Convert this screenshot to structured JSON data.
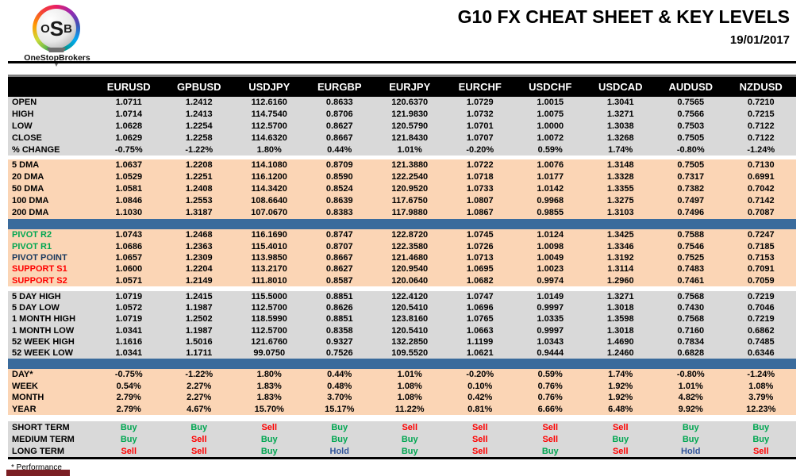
{
  "header": {
    "logo_o": "O",
    "logo_s": "S",
    "logo_b": "B",
    "logo_label": "OneStopBrokers",
    "title": "G10 FX CHEAT SHEET & KEY LEVELS",
    "date": "19/01/2017"
  },
  "footer": {
    "note": "* Performance"
  },
  "colors": {
    "buy": "#00A651",
    "sell": "#FE0000",
    "hold": "#31559B",
    "pivot_resistance": "#00A651",
    "pivot_point": "#17375D",
    "support": "#FE0000",
    "section_peach": "#FBD5B5",
    "section_gray": "#D9D9D9",
    "divider_blue": "#3A6B9C",
    "header_bg": "#000000"
  },
  "table": {
    "columns": [
      "EURUSD",
      "GPBUSD",
      "USDJPY",
      "EURGBP",
      "EURJPY",
      "EURCHF",
      "USDCHF",
      "USDCAD",
      "AUDUSD",
      "NZDUSD"
    ],
    "sections": [
      {
        "id": "ohlc",
        "bg": "gray",
        "before": null,
        "rows": [
          {
            "label": "OPEN",
            "values": [
              "1.0711",
              "1.2412",
              "112.6160",
              "0.8633",
              "120.6370",
              "1.0729",
              "1.0015",
              "1.3041",
              "0.7565",
              "0.7210"
            ]
          },
          {
            "label": "HIGH",
            "values": [
              "1.0714",
              "1.2413",
              "114.7540",
              "0.8706",
              "121.9830",
              "1.0732",
              "1.0075",
              "1.3271",
              "0.7566",
              "0.7215"
            ]
          },
          {
            "label": "LOW",
            "values": [
              "1.0628",
              "1.2254",
              "112.5700",
              "0.8627",
              "120.5790",
              "1.0701",
              "1.0000",
              "1.3038",
              "0.7503",
              "0.7122"
            ]
          },
          {
            "label": "CLOSE",
            "values": [
              "1.0629",
              "1.2258",
              "114.6320",
              "0.8667",
              "121.8430",
              "1.0707",
              "1.0072",
              "1.3268",
              "0.7505",
              "0.7122"
            ]
          },
          {
            "label": "% CHANGE",
            "values": [
              "-0.75%",
              "-1.22%",
              "1.80%",
              "0.44%",
              "1.01%",
              "-0.20%",
              "0.59%",
              "1.74%",
              "-0.80%",
              "-1.24%"
            ]
          }
        ]
      },
      {
        "id": "dma",
        "bg": "peach",
        "before": "gap",
        "rows": [
          {
            "label": "5 DMA",
            "values": [
              "1.0637",
              "1.2208",
              "114.1080",
              "0.8709",
              "121.3880",
              "1.0722",
              "1.0076",
              "1.3148",
              "0.7505",
              "0.7130"
            ]
          },
          {
            "label": "20 DMA",
            "values": [
              "1.0529",
              "1.2251",
              "116.1200",
              "0.8590",
              "122.2540",
              "1.0718",
              "1.0177",
              "1.3328",
              "0.7317",
              "0.6991"
            ]
          },
          {
            "label": "50 DMA",
            "values": [
              "1.0581",
              "1.2408",
              "114.3420",
              "0.8524",
              "120.9520",
              "1.0733",
              "1.0142",
              "1.3355",
              "0.7382",
              "0.7042"
            ]
          },
          {
            "label": "100 DMA",
            "values": [
              "1.0846",
              "1.2553",
              "108.6640",
              "0.8639",
              "117.6750",
              "1.0807",
              "0.9968",
              "1.3275",
              "0.7497",
              "0.7142"
            ]
          },
          {
            "label": "200 DMA",
            "values": [
              "1.1030",
              "1.3187",
              "107.0670",
              "0.8383",
              "117.9880",
              "1.0867",
              "0.9855",
              "1.3103",
              "0.7496",
              "0.7087"
            ]
          }
        ]
      },
      {
        "id": "pivots",
        "bg": "peach",
        "before": "blue",
        "rows": [
          {
            "label": "PIVOT R2",
            "cls": "lbl-green",
            "values": [
              "1.0743",
              "1.2468",
              "116.1690",
              "0.8747",
              "122.8720",
              "1.0745",
              "1.0124",
              "1.3425",
              "0.7588",
              "0.7247"
            ]
          },
          {
            "label": "PIVOT R1",
            "cls": "lbl-green",
            "values": [
              "1.0686",
              "1.2363",
              "115.4010",
              "0.8707",
              "122.3580",
              "1.0726",
              "1.0098",
              "1.3346",
              "0.7546",
              "0.7185"
            ]
          },
          {
            "label": "PIVOT POINT",
            "cls": "lbl-navy",
            "values": [
              "1.0657",
              "1.2309",
              "113.9850",
              "0.8667",
              "121.4680",
              "1.0713",
              "1.0049",
              "1.3192",
              "0.7525",
              "0.7153"
            ]
          },
          {
            "label": "SUPPORT S1",
            "cls": "lbl-red",
            "values": [
              "1.0600",
              "1.2204",
              "113.2170",
              "0.8627",
              "120.9540",
              "1.0695",
              "1.0023",
              "1.3114",
              "0.7483",
              "0.7091"
            ]
          },
          {
            "label": "SUPPORT S2",
            "cls": "lbl-red",
            "values": [
              "1.0571",
              "1.2149",
              "111.8010",
              "0.8587",
              "120.0640",
              "1.0682",
              "0.9974",
              "1.2960",
              "0.7461",
              "0.7059"
            ]
          }
        ]
      },
      {
        "id": "ranges",
        "bg": "gray",
        "before": "gap",
        "rows": [
          {
            "label": "5 DAY HIGH",
            "values": [
              "1.0719",
              "1.2415",
              "115.5000",
              "0.8851",
              "122.4120",
              "1.0747",
              "1.0149",
              "1.3271",
              "0.7568",
              "0.7219"
            ]
          },
          {
            "label": "5 DAY LOW",
            "values": [
              "1.0572",
              "1.1987",
              "112.5700",
              "0.8626",
              "120.5410",
              "1.0696",
              "0.9997",
              "1.3018",
              "0.7430",
              "0.7046"
            ]
          },
          {
            "label": "1 MONTH HIGH",
            "values": [
              "1.0719",
              "1.2502",
              "118.5990",
              "0.8851",
              "123.8160",
              "1.0765",
              "1.0335",
              "1.3598",
              "0.7568",
              "0.7219"
            ]
          },
          {
            "label": "1 MONTH LOW",
            "values": [
              "1.0341",
              "1.1987",
              "112.5700",
              "0.8358",
              "120.5410",
              "1.0663",
              "0.9997",
              "1.3018",
              "0.7160",
              "0.6862"
            ]
          },
          {
            "label": "52 WEEK HIGH",
            "values": [
              "1.1616",
              "1.5016",
              "121.6760",
              "0.9327",
              "132.2850",
              "1.1199",
              "1.0343",
              "1.4690",
              "0.7834",
              "0.7485"
            ]
          },
          {
            "label": "52 WEEK LOW",
            "values": [
              "1.0341",
              "1.1711",
              "99.0750",
              "0.7526",
              "109.5520",
              "1.0621",
              "0.9444",
              "1.2460",
              "0.6828",
              "0.6346"
            ]
          }
        ]
      },
      {
        "id": "perf",
        "bg": "peach",
        "before": "blue",
        "rows": [
          {
            "label": "DAY*",
            "values": [
              "-0.75%",
              "-1.22%",
              "1.80%",
              "0.44%",
              "1.01%",
              "-0.20%",
              "0.59%",
              "1.74%",
              "-0.80%",
              "-1.24%"
            ]
          },
          {
            "label": "WEEK",
            "values": [
              "0.54%",
              "2.27%",
              "1.83%",
              "0.48%",
              "1.08%",
              "0.10%",
              "0.76%",
              "1.92%",
              "1.01%",
              "1.08%"
            ]
          },
          {
            "label": "MONTH",
            "values": [
              "2.79%",
              "2.27%",
              "1.83%",
              "3.70%",
              "1.08%",
              "0.42%",
              "0.76%",
              "1.92%",
              "4.82%",
              "3.79%"
            ]
          },
          {
            "label": "YEAR",
            "values": [
              "2.79%",
              "4.67%",
              "15.70%",
              "15.17%",
              "11.22%",
              "0.81%",
              "6.66%",
              "6.48%",
              "9.92%",
              "12.23%"
            ]
          }
        ]
      },
      {
        "id": "signals",
        "bg": "gray",
        "before": "gap",
        "signals": true,
        "rows": [
          {
            "label": "SHORT TERM",
            "values": [
              "Buy",
              "Buy",
              "Sell",
              "Buy",
              "Sell",
              "Sell",
              "Sell",
              "Sell",
              "Buy",
              "Buy"
            ]
          },
          {
            "label": "MEDIUM TERM",
            "values": [
              "Buy",
              "Sell",
              "Buy",
              "Buy",
              "Buy",
              "Sell",
              "Sell",
              "Buy",
              "Buy",
              "Buy"
            ]
          },
          {
            "label": "LONG TERM",
            "values": [
              "Sell",
              "Sell",
              "Buy",
              "Hold",
              "Buy",
              "Sell",
              "Buy",
              "Sell",
              "Hold",
              "Sell"
            ]
          }
        ]
      }
    ]
  }
}
